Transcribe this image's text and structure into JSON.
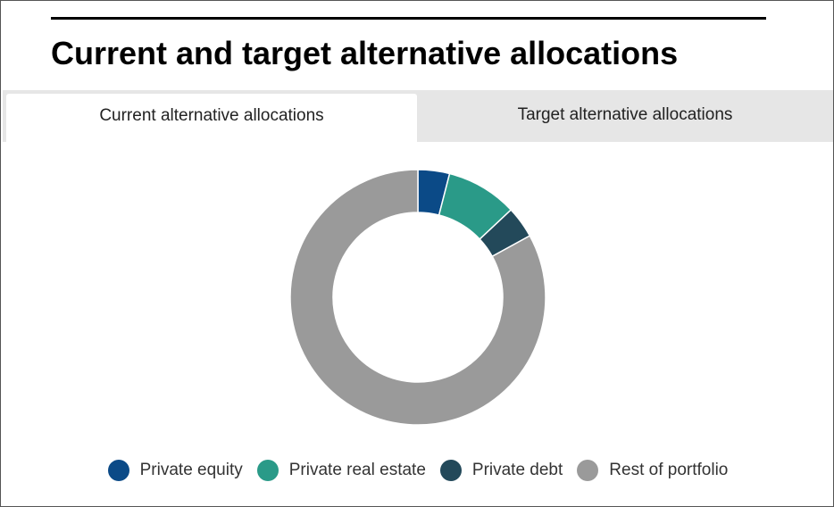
{
  "title": "Current and target alternative allocations",
  "tabs": [
    {
      "label": "Current alternative allocations",
      "active": true
    },
    {
      "label": "Target alternative allocations",
      "active": false
    }
  ],
  "colors": {
    "private_equity": "#0b4a87",
    "private_real_estate": "#2a9a88",
    "private_debt": "#23495a",
    "rest_of_portfolio": "#9a9a9a"
  },
  "chart_data": {
    "type": "pie",
    "donut": true,
    "categories": [
      "Private equity",
      "Private real estate",
      "Private debt",
      "Rest of portfolio"
    ],
    "values": [
      4,
      9,
      4,
      83
    ],
    "colors": [
      "#0b4a87",
      "#2a9a88",
      "#23495a",
      "#9a9a9a"
    ],
    "legend_position": "bottom"
  }
}
